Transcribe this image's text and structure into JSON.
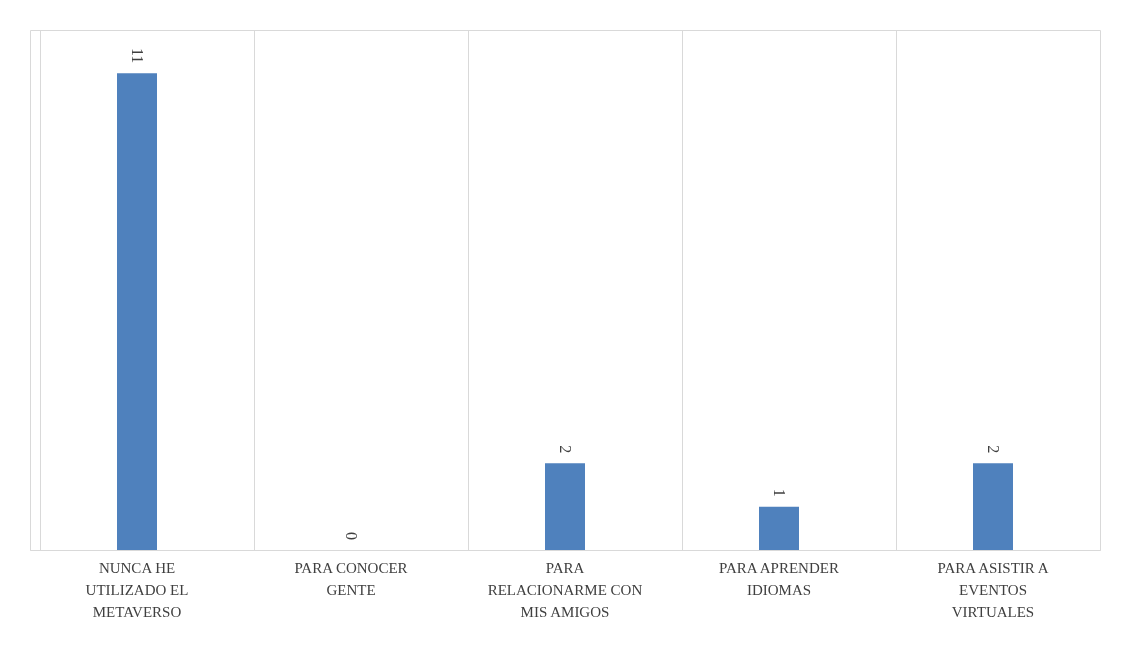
{
  "chart_data": {
    "type": "bar",
    "categories": [
      "NUNCA HE UTILIZADO EL METAVERSO",
      "PARA CONOCER GENTE",
      "PARA RELACIONARME CON MIS AMIGOS",
      "PARA APRENDER IDIOMAS",
      "PARA ASISTIR A EVENTOS VIRTUALES"
    ],
    "values": [
      11,
      0,
      2,
      1,
      2
    ],
    "color": "#4f81bd",
    "ylim": [
      0,
      12
    ],
    "data_labels": true,
    "grid": "x",
    "tick_labels": "x"
  }
}
